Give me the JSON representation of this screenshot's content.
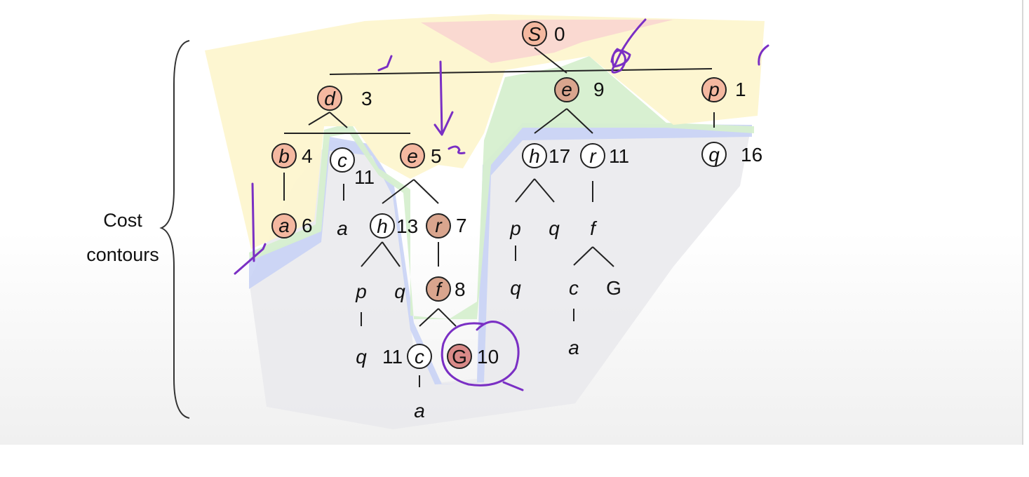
{
  "caption": {
    "line1": "Cost",
    "line2": "contours"
  },
  "nodes": {
    "S": {
      "letter": "S",
      "cost": "0"
    },
    "d": {
      "letter": "d",
      "cost": "3"
    },
    "e1": {
      "letter": "e",
      "cost": "9"
    },
    "p1": {
      "letter": "p",
      "cost": "1"
    },
    "b": {
      "letter": "b",
      "cost": "4"
    },
    "c1": {
      "letter": "c",
      "cost": "11"
    },
    "e2": {
      "letter": "e",
      "cost": "5"
    },
    "h1": {
      "letter": "h",
      "cost": "17"
    },
    "r1": {
      "letter": "r",
      "cost": "11"
    },
    "q1": {
      "letter": "q",
      "cost": "16"
    },
    "a1": {
      "letter": "a",
      "cost": "6"
    },
    "h2": {
      "letter": "h",
      "cost": "13"
    },
    "r2": {
      "letter": "r",
      "cost": "7"
    },
    "f1": {
      "letter": "f",
      "cost": "8"
    },
    "c2": {
      "letter": "c",
      "cost": "11"
    },
    "G1": {
      "letter": "G",
      "cost": "10"
    }
  },
  "leaves": {
    "a_under_c": "a",
    "p_under_h": "p",
    "q_under_h": "q",
    "q_under_p": "q",
    "q_left": "q",
    "q_left_cost": "11",
    "a_under_c2": "a",
    "p_under_h1": "p",
    "q_under_h1": "q",
    "q_under_p1": "q",
    "f_under_r": "f",
    "c_under_f": "c",
    "G_under_f": "G",
    "a_under_c3": "a"
  },
  "colors": {
    "expanded_fill": "#f4b8a0",
    "expanded_dark": "#d9a58e",
    "goal_fill": "#d98a88",
    "contour_red": "#f9d6d0",
    "contour_yellow": "#fdf6cf",
    "contour_green": "#d6efcf",
    "contour_blue": "#c9d3f5",
    "contour_gray": "#e9e9ec",
    "annotation": "#7a2fc4"
  }
}
